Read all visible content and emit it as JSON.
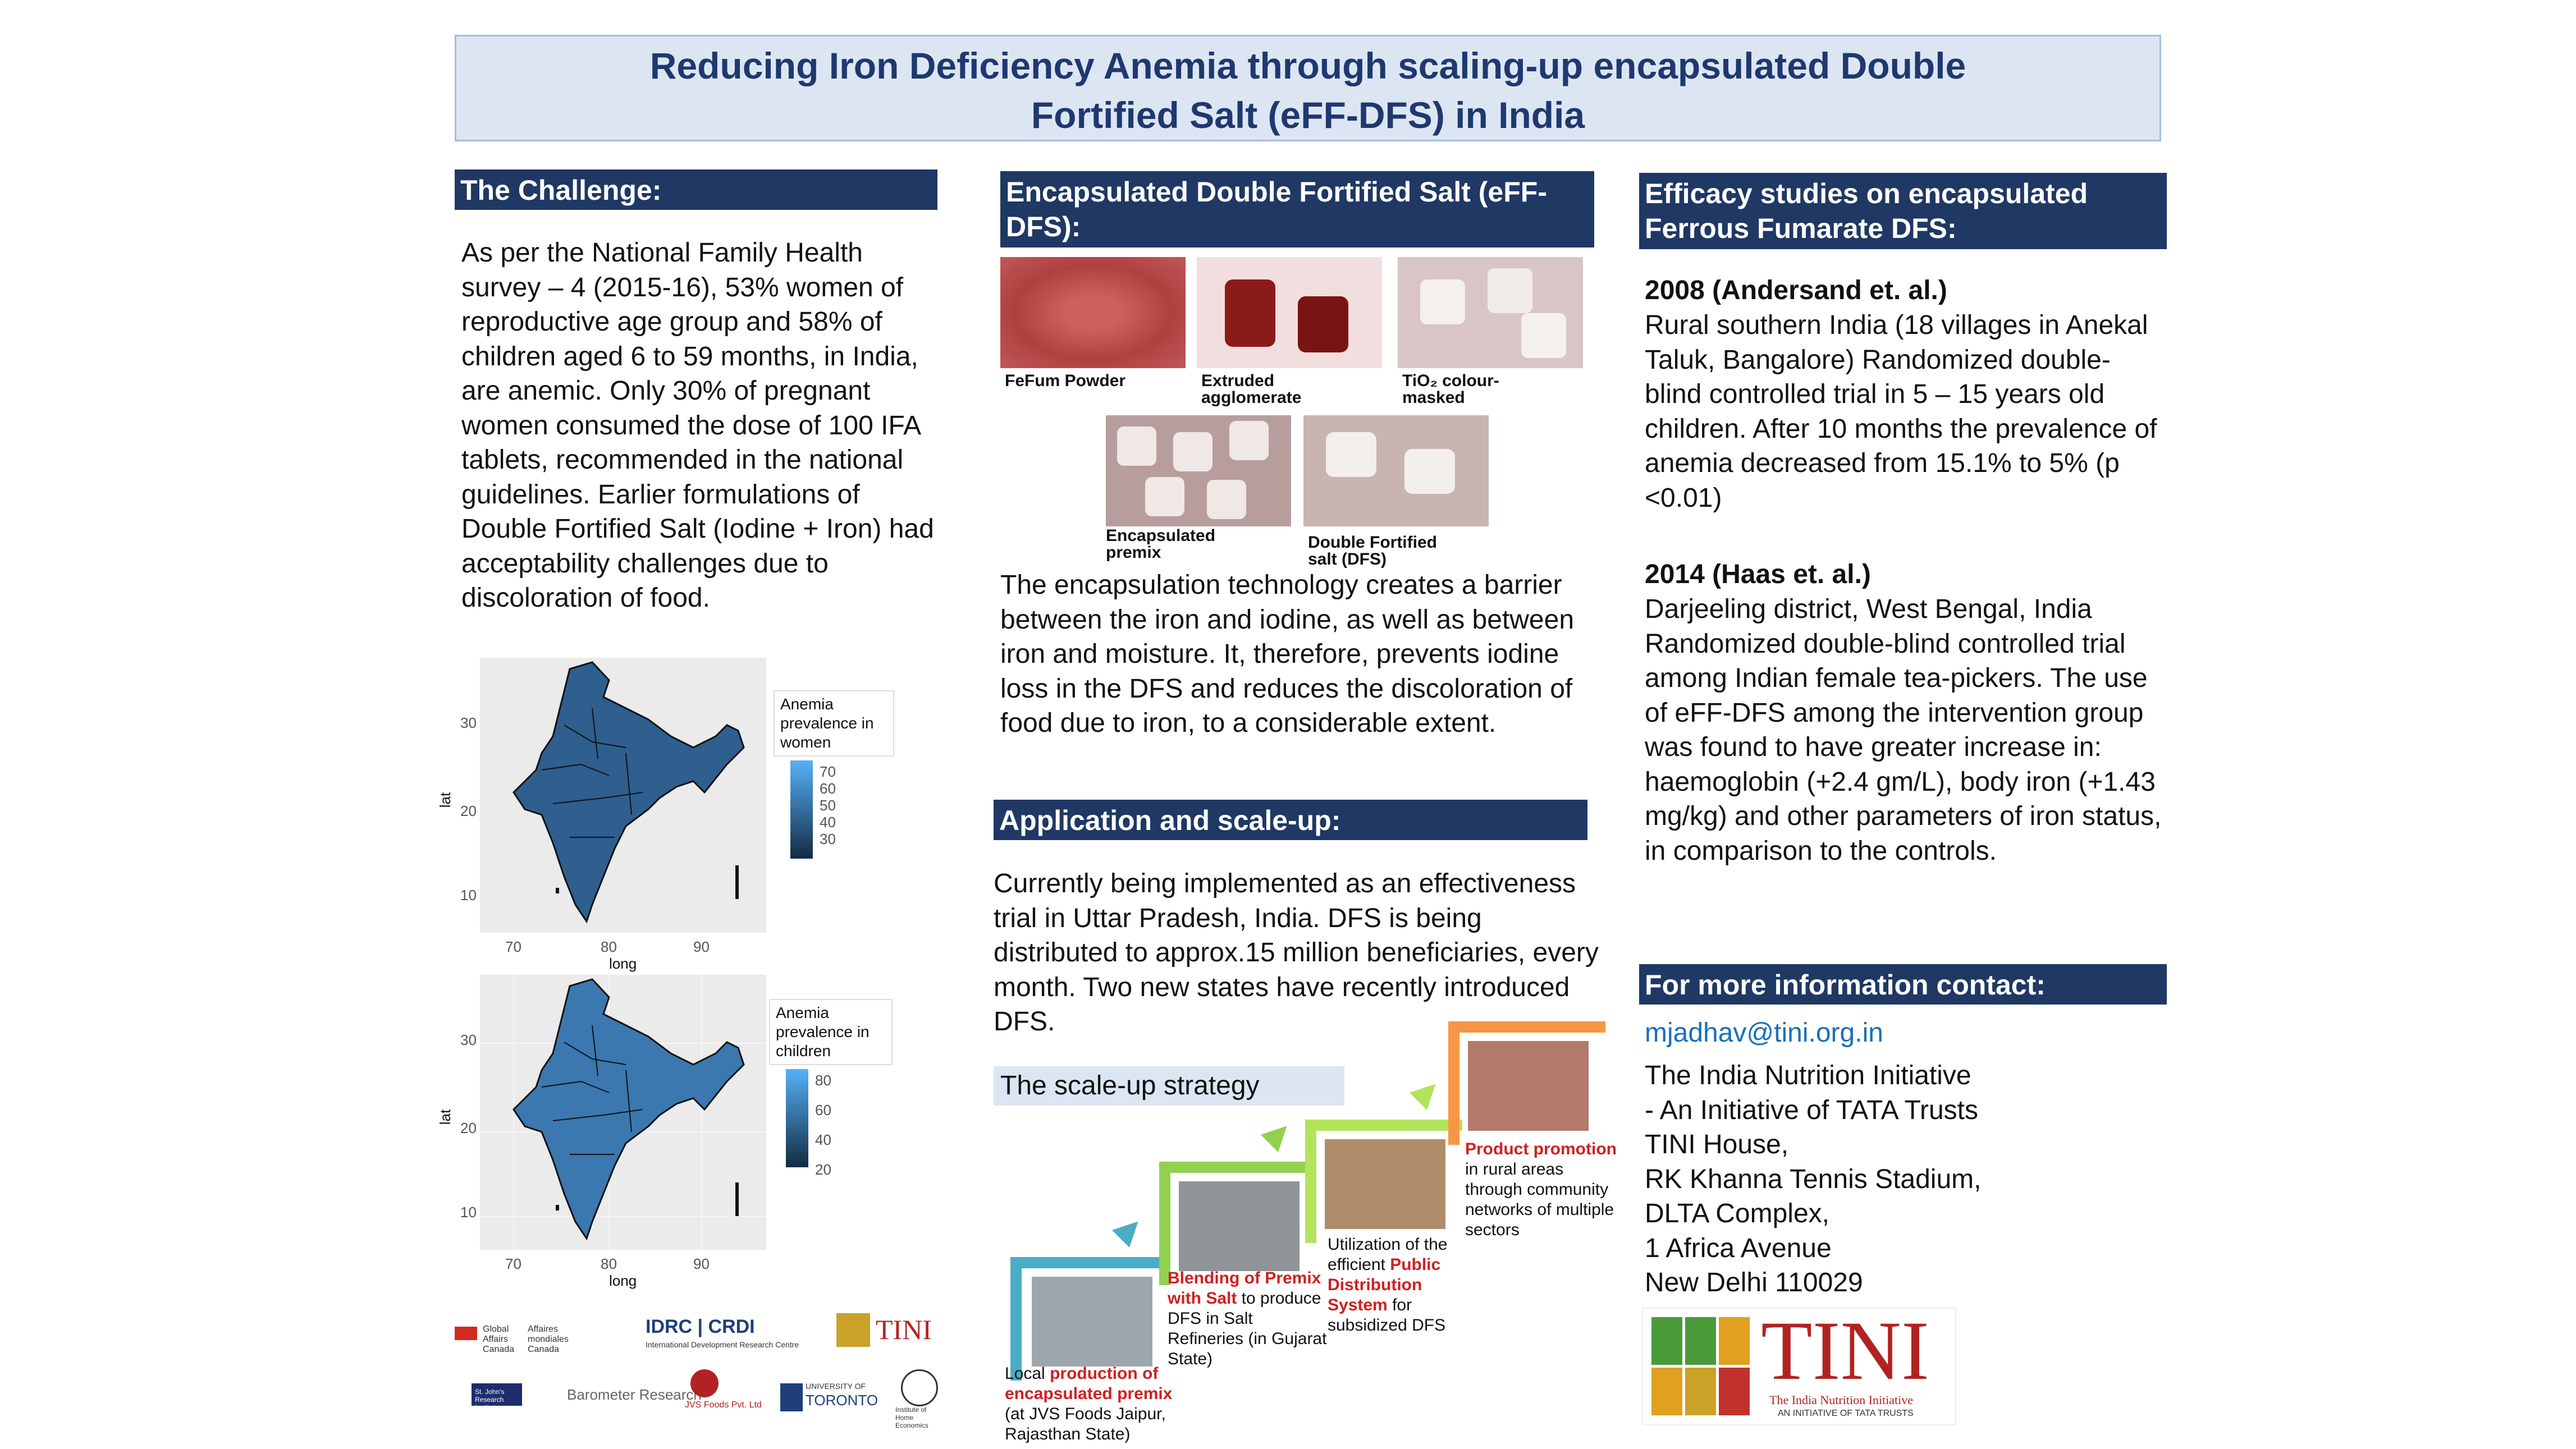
{
  "title": {
    "line1": "Reducing Iron Deficiency Anemia through scaling-up encapsulated Double",
    "line2": "Fortified Salt (eFF-DFS) in India"
  },
  "challenge": {
    "header": "The Challenge:",
    "text": "As per the National Family Health survey – 4 (2015-16), 53% women of reproductive age group and 58% of children aged 6 to 59 months, in India, are anemic. Only 30% of pregnant women consumed the dose of 100 IFA tablets, recommended in the national guidelines. Earlier formulations of Double Fortified Salt (Iodine + Iron) had acceptability challenges due to discoloration of food."
  },
  "maps": [
    {
      "legend_title": "Anemia prevalence in women",
      "legend_ticks": [
        "70",
        "60",
        "50",
        "40",
        "30"
      ],
      "y_ticks": [
        "30",
        "20",
        "10"
      ],
      "x_ticks": [
        "70",
        "80",
        "90"
      ],
      "xlabel": "long",
      "ylabel": "lat",
      "colors": {
        "low": "#132b43",
        "high": "#56b1f7",
        "fill": "#2e5f8f"
      }
    },
    {
      "legend_title": "Anemia prevalence in children",
      "legend_ticks": [
        "80",
        "60",
        "40",
        "20"
      ],
      "y_ticks": [
        "30",
        "20",
        "10"
      ],
      "x_ticks": [
        "70",
        "80",
        "90"
      ],
      "xlabel": "long",
      "ylabel": "lat",
      "colors": {
        "low": "#132b43",
        "high": "#56b1f7",
        "fill": "#3b78b0"
      }
    }
  ],
  "logos": {
    "gac": "Global Affairs Canada",
    "gac_fr": "Affaires mondiales Canada",
    "idrc": "IDRC | CRDI",
    "idrc_sub": "International Development Research Centre",
    "tini_small": "TINI",
    "stjohns": "St. John's Research Institute",
    "barometer": "Barometer Research",
    "jvs": "JVS Foods Pvt. Ltd",
    "toronto_pre": "UNIVERSITY OF",
    "toronto": "TORONTO",
    "ihe": "Institute of Home Economics"
  },
  "encapsulated": {
    "header": "Encapsulated Double Fortified Salt (eFF-DFS):",
    "captions": [
      "FeFum Powder",
      "Extruded agglomerate",
      "TiO₂ colour-masked",
      "Encapsulated premix",
      "Double Fortified salt (DFS)"
    ],
    "text": "The encapsulation technology creates a barrier between the iron and iodine, as well as between iron and moisture. It, therefore, prevents iodine loss in the DFS and reduces the discoloration of food due to iron, to a considerable extent."
  },
  "application": {
    "header": "Application and scale-up:",
    "text": "Currently being implemented as an effectiveness trial in Uttar Pradesh, India. DFS is being distributed to approx.15 million beneficiaries, every month. Two new states have recently introduced DFS.",
    "strategy_label": "The scale-up strategy",
    "steps": [
      {
        "pre": "Local ",
        "red": "production of encapsulated premix",
        "post": " (at JVS Foods Jaipur, Rajasthan State)"
      },
      {
        "pre": "",
        "red": "Blending of Premix with Salt",
        "post": " to produce DFS in Salt Refineries (in Gujarat State)"
      },
      {
        "pre": "Utilization of the efficient ",
        "red": "Public Distribution System",
        "post": " for subsidized DFS"
      },
      {
        "pre": "",
        "red": "Product promotion",
        "post": " in rural areas through community networks of multiple sectors"
      }
    ],
    "step_colors": [
      "#4bacc6",
      "#92d050",
      "#b3e35a",
      "#f79646"
    ]
  },
  "efficacy": {
    "header": "Efficacy studies on encapsulated Ferrous Fumarate DFS:",
    "study1_title": "2008 (Andersand et. al.)",
    "study1_text": "Rural southern India (18 villages in Anekal Taluk, Bangalore) Randomized double-blind controlled trial in 5 – 15 years old children. After 10 months the prevalence of anemia decreased from 15.1% to 5% (p <0.01)",
    "study2_title": "2014 (Haas et. al.)",
    "study2_text": "Darjeeling district, West Bengal, India Randomized double-blind controlled trial among Indian female tea-pickers. The use of eFF-DFS among the intervention group was found to have greater increase in: haemoglobin (+2.4 gm/L), body iron (+1.43 mg/kg) and other parameters of iron status, in comparison to the controls."
  },
  "contact": {
    "header": "For more information contact:",
    "email": "mjadhav@tini.org.in",
    "lines": [
      "The India Nutrition Initiative",
      "- An Initiative of TATA Trusts",
      "TINI House,",
      "RK Khanna Tennis Stadium,",
      "DLTA Complex,",
      "1 Africa Avenue",
      "New Delhi 110029"
    ],
    "logo_text": "TINI",
    "logo_sub": "The India Nutrition Initiative",
    "logo_sub2": "AN INITIATIVE OF TATA TRUSTS"
  }
}
